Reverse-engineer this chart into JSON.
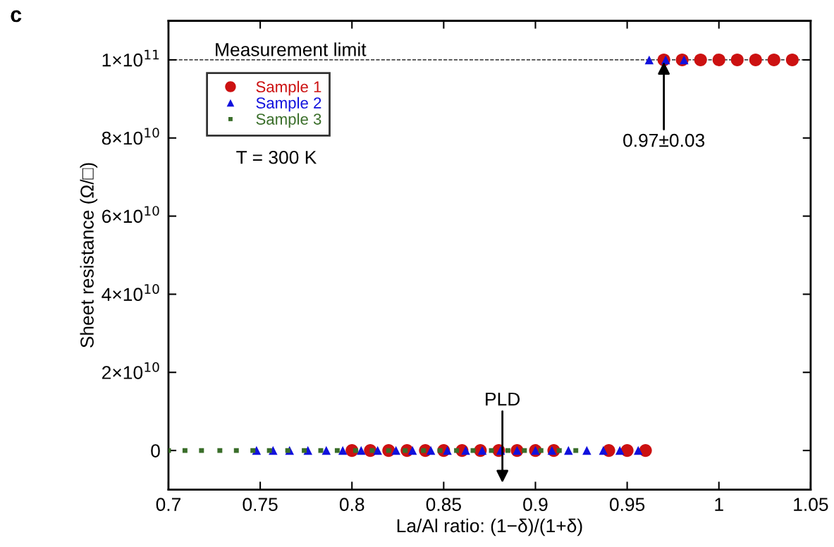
{
  "chart_data": {
    "type": "scatter",
    "xlabel": "La/Al ratio: (1−δ)/(1+δ)",
    "ylabel": "Sheet resistance (Ω/□)",
    "series": [
      {
        "name": "Sample 1",
        "color": "#cc1111",
        "marker": "circle",
        "x": [
          0.8,
          0.81,
          0.82,
          0.83,
          0.84,
          0.85,
          0.86,
          0.87,
          0.88,
          0.89,
          0.9,
          0.91,
          0.94,
          0.95,
          0.96,
          0.97,
          0.98,
          0.99,
          1.0,
          1.01,
          1.02,
          1.03,
          1.04
        ],
        "values": [
          0,
          0,
          0,
          0,
          0,
          0,
          0,
          0,
          0,
          0,
          0,
          0,
          0,
          0,
          0,
          100000000000.0,
          100000000000.0,
          100000000000.0,
          100000000000.0,
          100000000000.0,
          100000000000.0,
          100000000000.0,
          100000000000.0
        ]
      },
      {
        "name": "Sample 2",
        "color": "#1111dd",
        "marker": "triangle",
        "x": [
          0.748,
          0.757,
          0.766,
          0.776,
          0.786,
          0.795,
          0.805,
          0.814,
          0.824,
          0.833,
          0.843,
          0.852,
          0.862,
          0.871,
          0.881,
          0.89,
          0.9,
          0.909,
          0.918,
          0.928,
          0.937,
          0.946,
          0.956,
          0.962,
          0.971,
          0.981
        ],
        "values": [
          0,
          0,
          0,
          0,
          0,
          0,
          0,
          0,
          0,
          0,
          0,
          0,
          0,
          0,
          0,
          0,
          0,
          0,
          0,
          0,
          0,
          0,
          0,
          100000000000.0,
          100000000000.0,
          100000000000.0
        ]
      },
      {
        "name": "Sample 3",
        "color": "#3a6e2a",
        "marker": "square",
        "x": [
          0.7,
          0.709,
          0.718,
          0.728,
          0.737,
          0.746,
          0.755,
          0.765,
          0.774,
          0.783,
          0.792,
          0.802,
          0.811,
          0.82,
          0.829,
          0.839,
          0.848,
          0.857,
          0.866,
          0.876,
          0.885,
          0.894,
          0.903,
          0.913,
          0.922
        ],
        "values": [
          0,
          0,
          0,
          0,
          0,
          0,
          0,
          0,
          0,
          0,
          0,
          0,
          0,
          0,
          0,
          0,
          0,
          0,
          0,
          0,
          0,
          0,
          0,
          0,
          0
        ]
      }
    ],
    "xlim": [
      0.7,
      1.05
    ],
    "xticks": [
      0.7,
      0.75,
      0.8,
      0.85,
      0.9,
      0.95,
      1,
      1.05
    ],
    "ylim": [
      -10000000000.0,
      110000000000.0
    ],
    "yticks": [
      0,
      {
        "value": 20000000000.0,
        "label": "2×10$^{10}$"
      },
      {
        "value": 40000000000.0,
        "label": "4×10$^{10}$"
      },
      {
        "value": 60000000000.0,
        "label": "6×10$^{10}$"
      },
      {
        "value": 80000000000.0,
        "label": "8×10$^{10}$"
      },
      {
        "value": 100000000000.0,
        "label": "1×10$^{11}$"
      }
    ],
    "ref_lines": [
      {
        "axis": "y",
        "value": 100000000000.0,
        "label": "Measurement limit",
        "color": "#000000",
        "line_style": "dashed"
      }
    ],
    "annotations": [
      "c",
      "T = 300 K",
      {
        "text": "0.97±0.03",
        "x": 0.97,
        "y": 100000000000.0
      },
      {
        "text": "PLD",
        "x": 0.882,
        "y": 0
      }
    ],
    "legend": "top left",
    "grid": false
  }
}
